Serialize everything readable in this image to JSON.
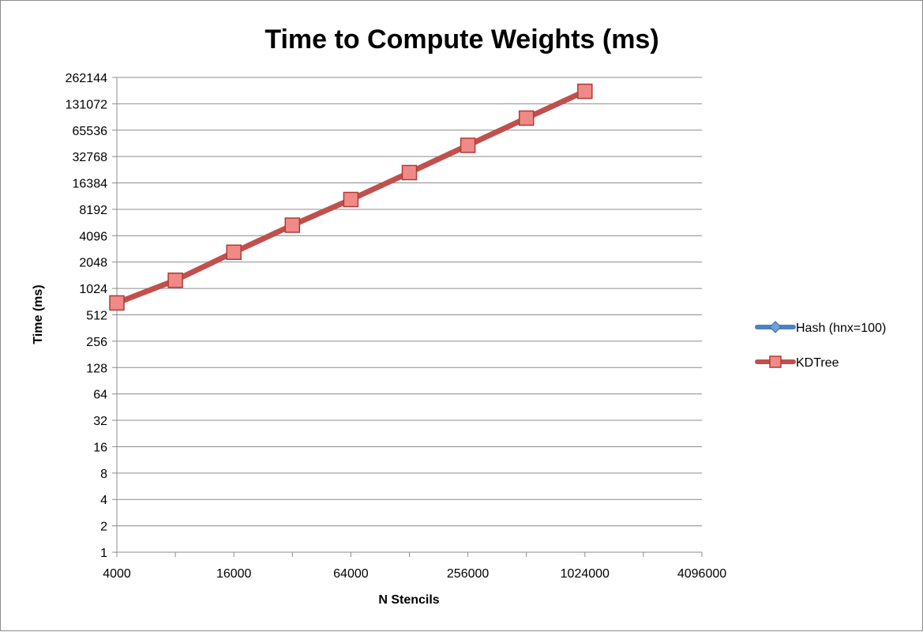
{
  "chart_data": {
    "type": "line",
    "title": "Time to Compute Weights (ms)",
    "xlabel": "N Stencils",
    "ylabel": "Time (ms)",
    "x_scale": "log2",
    "y_scale": "log2",
    "xlim": [
      4000,
      4096000
    ],
    "ylim": [
      1,
      262144
    ],
    "x_ticks": [
      "4000",
      "16000",
      "64000",
      "256000",
      "1024000",
      "4096000"
    ],
    "y_ticks": [
      "1",
      "2",
      "4",
      "8",
      "16",
      "32",
      "64",
      "128",
      "256",
      "512",
      "1024",
      "2048",
      "4096",
      "8192",
      "16384",
      "32768",
      "65536",
      "131072",
      "262144"
    ],
    "grid": "horizontal",
    "legend_position": "right",
    "series": [
      {
        "name": "Hash (hnx=100)",
        "color": "#4f81bd",
        "marker": "diamond",
        "x": [],
        "y": []
      },
      {
        "name": "KDTree",
        "color": "#c0504d",
        "marker": "square",
        "x": [
          4000,
          8000,
          16000,
          32000,
          64000,
          128000,
          256000,
          512000,
          1024000
        ],
        "y": [
          700,
          1270,
          2650,
          5400,
          10600,
          21500,
          44000,
          90000,
          182000
        ]
      }
    ]
  }
}
